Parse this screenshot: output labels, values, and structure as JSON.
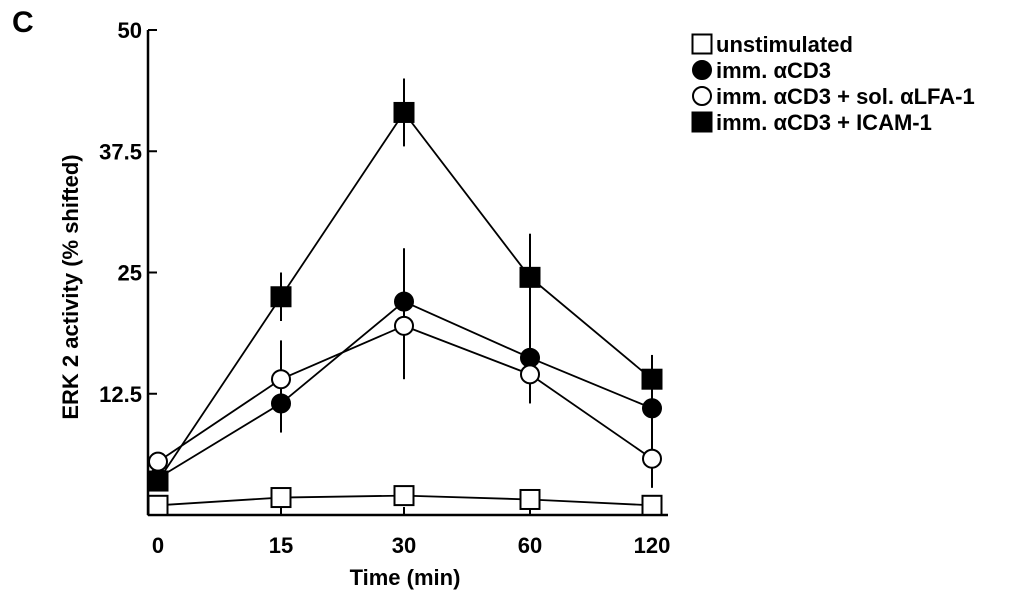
{
  "panel_label": "C",
  "chart_data": {
    "type": "line",
    "x_labels": [
      "0",
      "15",
      "30",
      "60",
      "120"
    ],
    "x": [
      0,
      15,
      30,
      60,
      120
    ],
    "xlabel": "Time (min)",
    "ylabel": "ERK 2 activity (% shifted)",
    "ylim": [
      0,
      50
    ],
    "y_ticks": [
      12.5,
      25,
      37.5,
      50
    ],
    "y_tick_labels": [
      "12.5",
      "25",
      "37.5",
      "50"
    ],
    "legend_position": "top-right",
    "grid": false,
    "series": [
      {
        "name": "unstimulated",
        "marker": "square-open",
        "values": [
          1.0,
          1.8,
          2.0,
          1.6,
          1.0
        ],
        "errors": [
          0,
          0,
          0,
          0,
          0
        ]
      },
      {
        "name": "imm. αCD3",
        "marker": "circle-filled",
        "values": [
          3.8,
          11.5,
          22.0,
          16.2,
          11.0
        ],
        "errors": [
          0.5,
          3.0,
          5.5,
          4.0,
          2.5
        ]
      },
      {
        "name": "imm. αCD3 + sol. αLFA-1",
        "marker": "circle-open",
        "values": [
          5.5,
          14.0,
          19.5,
          14.5,
          5.8
        ],
        "errors": [
          0.5,
          4.0,
          5.5,
          3.0,
          3.0
        ]
      },
      {
        "name": "imm. αCD3 + ICAM-1",
        "marker": "square-filled",
        "values": [
          3.5,
          22.5,
          41.5,
          24.5,
          14.0
        ],
        "errors": [
          0.5,
          2.5,
          3.5,
          4.5,
          2.5
        ]
      }
    ]
  }
}
